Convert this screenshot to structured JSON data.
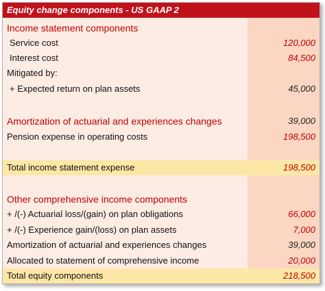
{
  "title": "Equity change components - US GAAP 2",
  "rows": [
    {
      "label": "Income statement components"
    },
    {
      "label": "Service cost",
      "value": "120,000"
    },
    {
      "label": "Interest cost",
      "value": "84,500"
    },
    {
      "label": "Mitigated by:"
    },
    {
      "label": "+ Expected return on plan assets",
      "value": "45,000"
    },
    {
      "label": "Amortization of actuarial and experiences changes",
      "value": "39,000"
    },
    {
      "label": "Pension expense in operating costs",
      "value": "198,500"
    },
    {
      "label": "Total income statement expense",
      "value": "198,500"
    },
    {
      "label": "Other comprehensive income components"
    },
    {
      "label": "+ /(-) Actuarial loss/(gain) on plan obligations",
      "value": "66,000"
    },
    {
      "label": "+ /(-) Experience gain/(loss) on plan assets",
      "value": "7,000"
    },
    {
      "label": "Amortization of actuarial and experiences changes",
      "value": "39,000"
    },
    {
      "label": "Allocated to statement of comprehensive income",
      "value": "20,000"
    },
    {
      "label": "Total equity components",
      "value": "218,500"
    }
  ]
}
